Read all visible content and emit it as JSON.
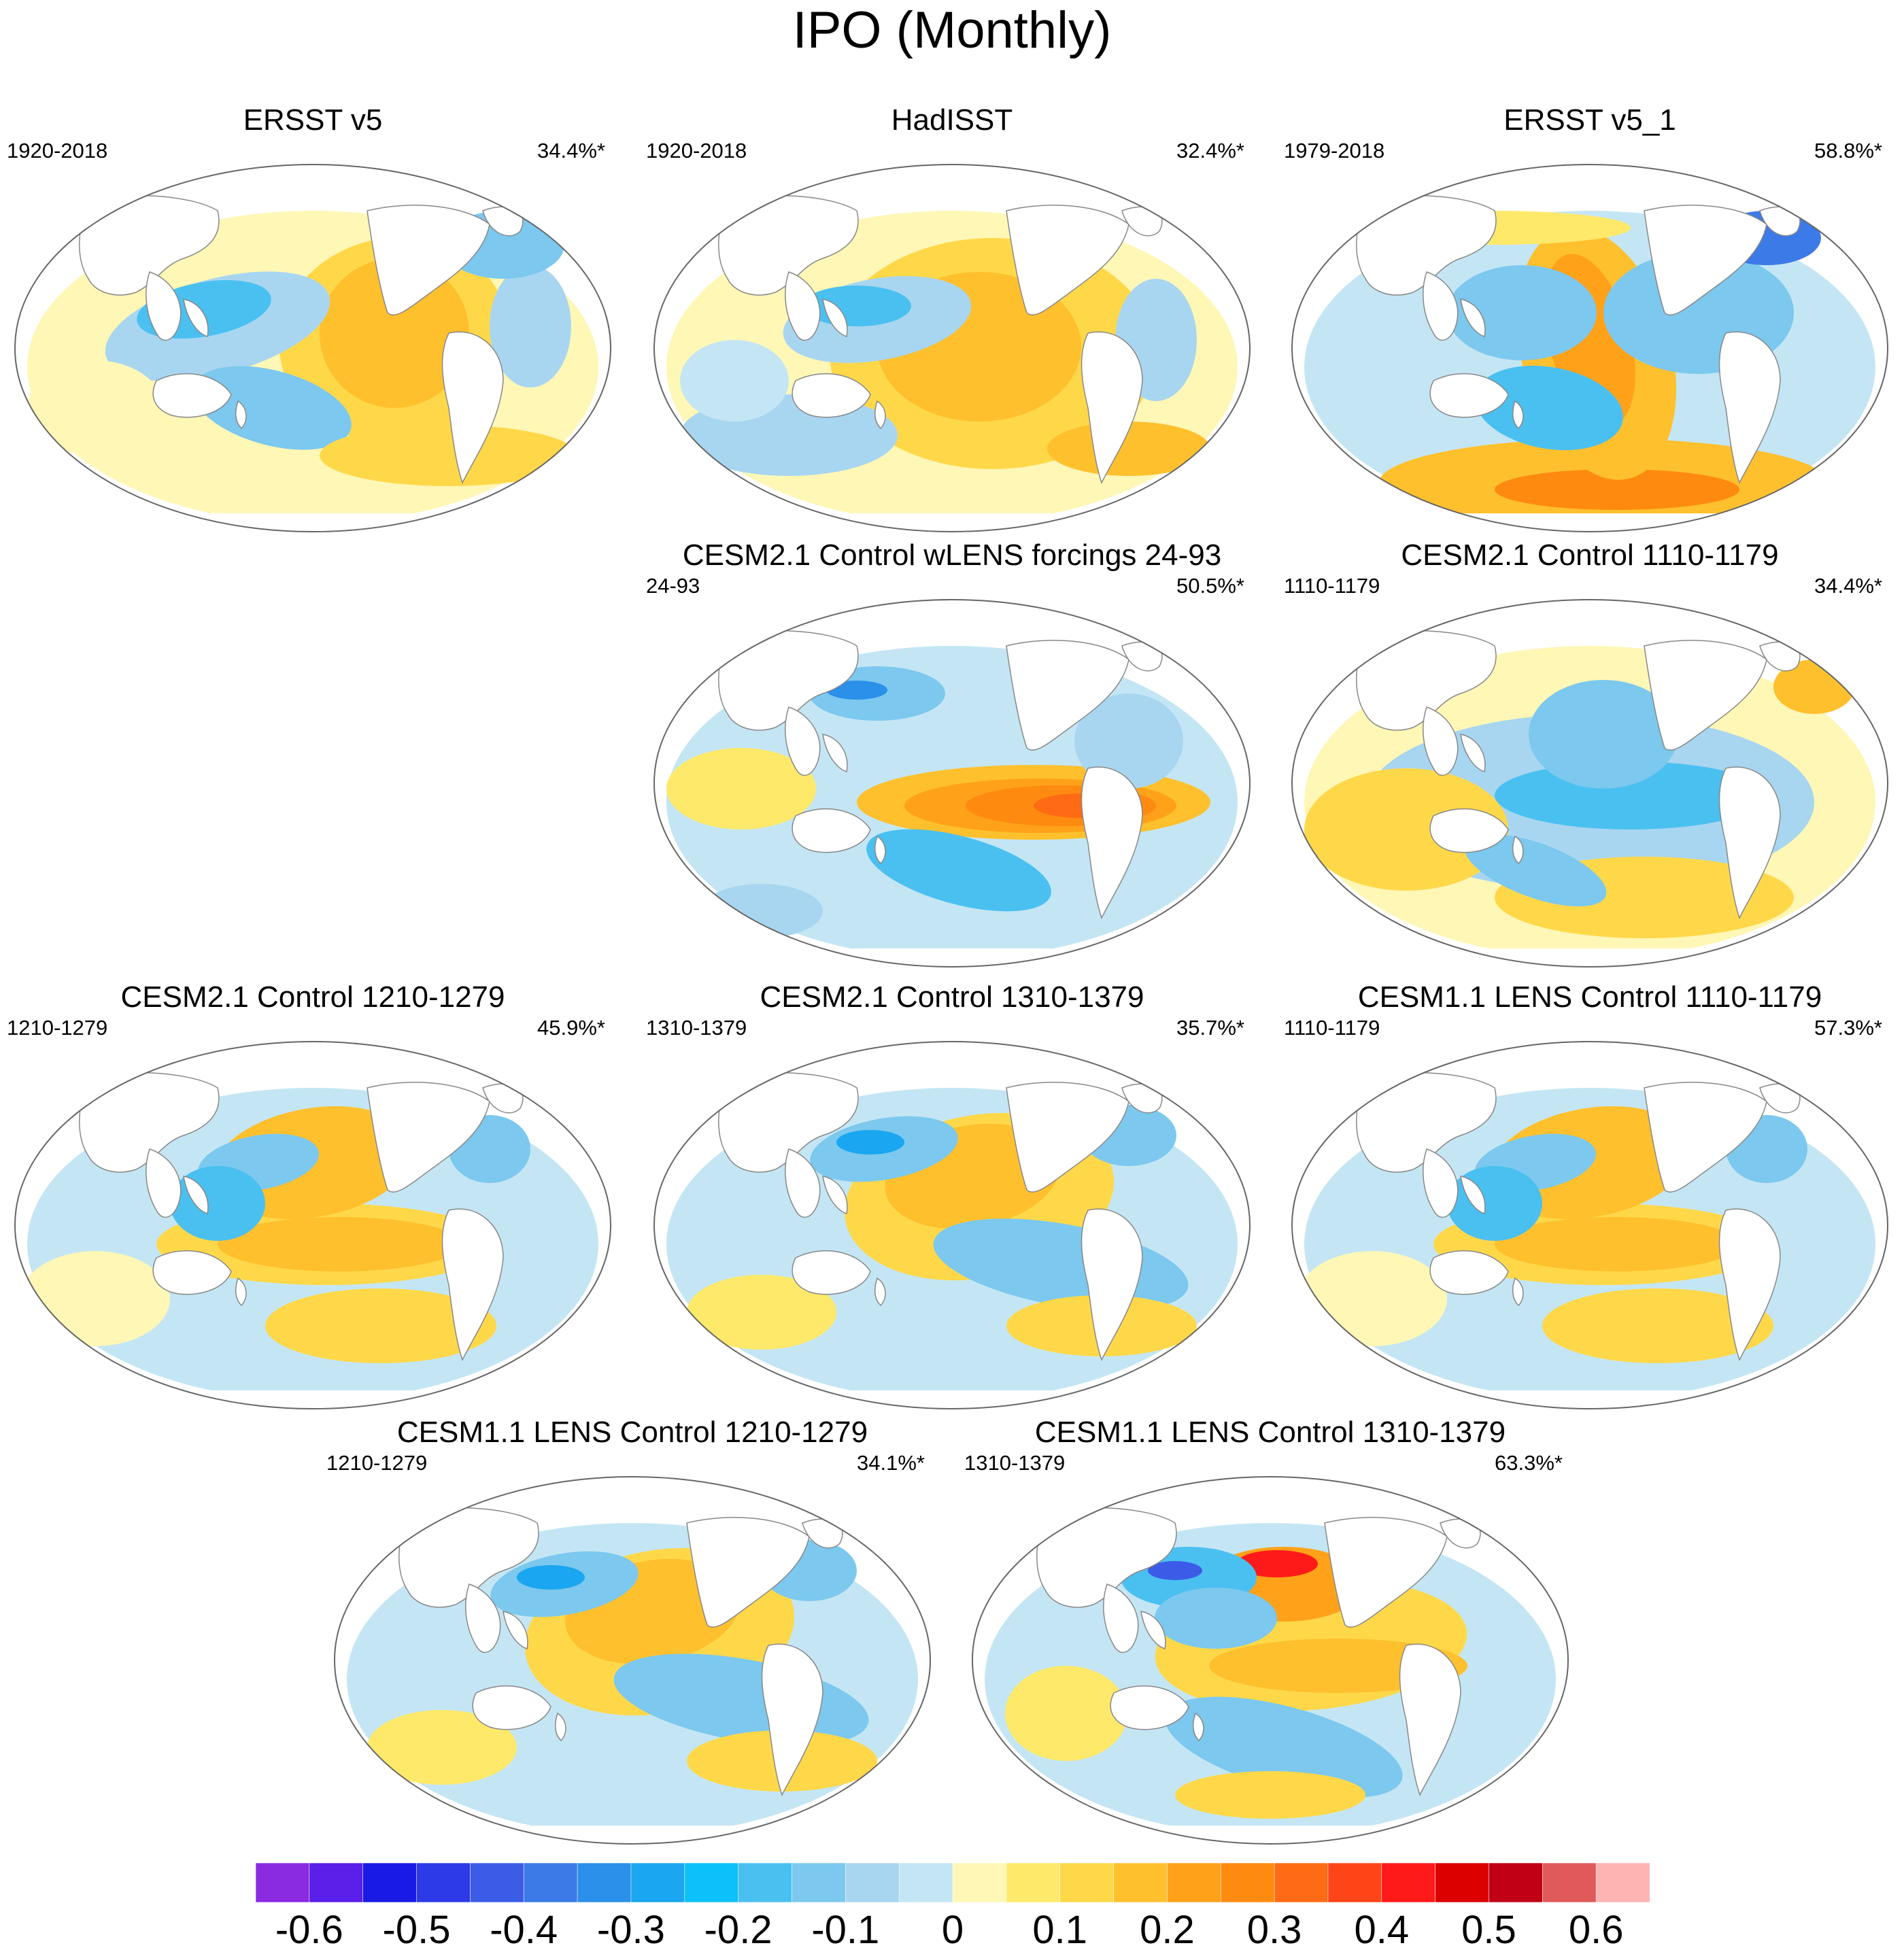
{
  "title": "IPO (Monthly)",
  "colors": {
    "levels": [
      "#8a2be2",
      "#5a1fe8",
      "#1a1ae6",
      "#2d3ae8",
      "#3c5ce8",
      "#3c7ae8",
      "#2a90ea",
      "#1aa6f0",
      "#0cc0f8",
      "#4ac0f0",
      "#7cc8ee",
      "#a8d6f0",
      "#c4e6f4",
      "#fff7b6",
      "#ffe96a",
      "#ffd84a",
      "#ffc02e",
      "#ffa21a",
      "#ff8a10",
      "#ff6a14",
      "#ff4418",
      "#ff1a1a",
      "#dc0000",
      "#c00014",
      "#e05a5a",
      "#ffb4b4"
    ],
    "coast": "#888888"
  },
  "panels": [
    {
      "id": "ersst-v5",
      "title": "ERSST v5",
      "period": "1920-2018",
      "variance": "34.4%*",
      "pattern": "obs"
    },
    {
      "id": "hadisst",
      "title": "HadISST",
      "period": "1920-2018",
      "variance": "32.4%*",
      "pattern": "had"
    },
    {
      "id": "ersst-v5-1",
      "title": "ERSST v5_1",
      "period": "1979-2018",
      "variance": "58.8%*",
      "pattern": "obs2"
    },
    {
      "id": "cesm21-wlens",
      "title": "CESM2.1 Control wLENS forcings 24-93",
      "period": "24-93",
      "variance": "50.5%*",
      "pattern": "strong"
    },
    {
      "id": "cesm21-1110",
      "title": "CESM2.1 Control 1110-1179",
      "period": "1110-1179",
      "variance": "34.4%*",
      "pattern": "neg"
    },
    {
      "id": "cesm21-1210",
      "title": "CESM2.1 Control 1210-1279",
      "period": "1210-1279",
      "variance": "45.9%*",
      "pattern": "mod"
    },
    {
      "id": "cesm21-1310",
      "title": "CESM2.1 Control 1310-1379",
      "period": "1310-1379",
      "variance": "35.7%*",
      "pattern": "mod2"
    },
    {
      "id": "cesm11-1110",
      "title": "CESM1.1 LENS Control 1110-1179",
      "period": "1110-1179",
      "variance": "57.3%*",
      "pattern": "mod"
    },
    {
      "id": "cesm11-1210",
      "title": "CESM1.1 LENS Control 1210-1279",
      "period": "1210-1279",
      "variance": "34.1%*",
      "pattern": "mod2"
    },
    {
      "id": "cesm11-1310",
      "title": "CESM1.1 LENS Control 1310-1379",
      "period": "1310-1379",
      "variance": "63.3%*",
      "pattern": "strong2"
    }
  ],
  "colorbar": {
    "labels": [
      "-0.6",
      "-0.5",
      "-0.4",
      "-0.3",
      "-0.2",
      "-0.1",
      "0",
      "0.1",
      "0.2",
      "0.3",
      "0.4",
      "0.5",
      "0.6"
    ]
  }
}
